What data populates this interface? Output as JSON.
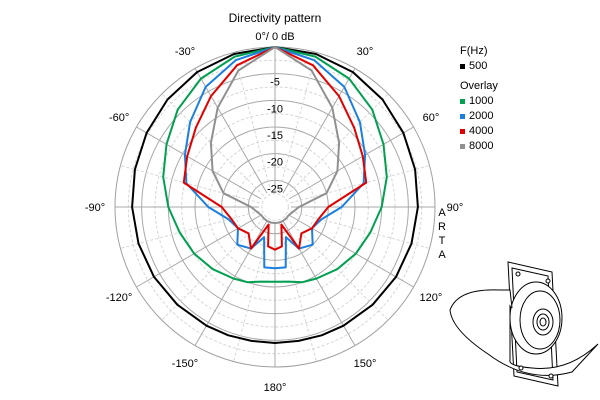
{
  "chart_data": {
    "type": "polar",
    "title": "Directivity pattern",
    "radial_unit_label": "0°/ 0 dB",
    "radial_ticks": [
      "-5",
      "-10",
      "-15",
      "-20",
      "-25"
    ],
    "radial_values": [
      -5,
      -10,
      -15,
      -20,
      -25
    ],
    "rlim": [
      -30,
      0
    ],
    "angle_ticks": [
      {
        "deg": -30,
        "label": "-30°"
      },
      {
        "deg": 30,
        "label": "30°"
      },
      {
        "deg": -60,
        "label": "-60°"
      },
      {
        "deg": 60,
        "label": "60°"
      },
      {
        "deg": -90,
        "label": "-90°"
      },
      {
        "deg": 90,
        "label": "90°"
      },
      {
        "deg": -120,
        "label": "-120°"
      },
      {
        "deg": 120,
        "label": "120°"
      },
      {
        "deg": -150,
        "label": "-150°"
      },
      {
        "deg": 150,
        "label": "150°"
      },
      {
        "deg": 180,
        "label": "180°"
      }
    ],
    "angles": [
      0,
      15,
      30,
      45,
      60,
      75,
      90,
      105,
      120,
      135,
      150,
      160,
      170,
      180
    ],
    "series": [
      {
        "name": "500",
        "color": "#000000",
        "values": [
          0,
          -0.3,
          -0.8,
          -1.5,
          -2.2,
          -2.8,
          -3.2,
          -3.5,
          -3.8,
          -4.1,
          -4.3,
          -4.4,
          -4.5,
          -4.5
        ]
      },
      {
        "name": "1000",
        "color": "#00a050",
        "values": [
          0,
          -0.8,
          -2.2,
          -4.2,
          -6.5,
          -8.3,
          -10.0,
          -11.5,
          -12.5,
          -13.5,
          -14.5,
          -15.0,
          -15.8,
          -16.0
        ]
      },
      {
        "name": "2000",
        "color": "#1a7fe0",
        "values": [
          0,
          -1.5,
          -4.0,
          -7.5,
          -10.5,
          -12.8,
          -17.5,
          -21.0,
          -22.0,
          -20.0,
          -21.0,
          -24.0,
          -18.5,
          -18.5
        ]
      },
      {
        "name": "4000",
        "color": "#e00000",
        "values": [
          0,
          -2.5,
          -6.0,
          -9.0,
          -11.0,
          -12.3,
          -20.0,
          -21.5,
          -22.0,
          -23.0,
          -21.0,
          -26.5,
          -22.5,
          -22.0
        ]
      },
      {
        "name": "8000",
        "color": "#909090",
        "values": [
          0,
          -3.5,
          -8.5,
          -13.0,
          -16.5,
          -20.0,
          -25.5,
          -26.5,
          -27.0,
          -27.0,
          -27.0,
          -27.0,
          -27.0,
          -27.0
        ]
      }
    ],
    "legend": {
      "title": "F(Hz)",
      "overlay_label": "Overlay",
      "position": "top-right"
    },
    "watermark": [
      "A",
      "R",
      "T",
      "A"
    ]
  }
}
